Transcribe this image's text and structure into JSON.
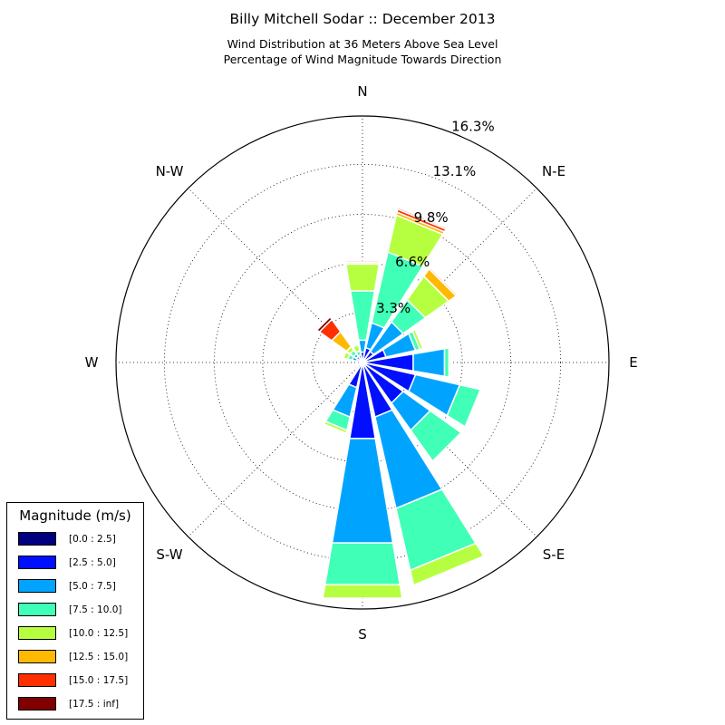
{
  "title": "Billy Mitchell Sodar :: December 2013",
  "subtitle1": "Wind Distribution at 36 Meters Above Sea Level",
  "subtitle2": "Percentage of Wind Magnitude Towards Direction",
  "directions": [
    "N",
    "N-E",
    "E",
    "S-E",
    "S",
    "S-W",
    "W",
    "N-W"
  ],
  "legend": {
    "title": "Magnitude (m/s)",
    "items": [
      {
        "label": "[0.0 : 2.5]",
        "color": "#000080"
      },
      {
        "label": "[2.5 : 5.0]",
        "color": "#0010ff"
      },
      {
        "label": "[5.0 : 7.5]",
        "color": "#00a4ff"
      },
      {
        "label": "[7.5 : 10.0]",
        "color": "#40ffb6"
      },
      {
        "label": "[10.0 : 12.5]",
        "color": "#b6ff40"
      },
      {
        "label": "[12.5 : 15.0]",
        "color": "#ffb900"
      },
      {
        "label": "[15.0 : 17.5]",
        "color": "#ff3000"
      },
      {
        "label": "[17.5 : inf]",
        "color": "#800000"
      }
    ]
  },
  "chart_data": {
    "type": "windrose",
    "title": "Billy Mitchell Sodar :: December 2013",
    "subtitle": [
      "Wind Distribution at 36 Meters Above Sea Level",
      "Percentage of Wind Magnitude Towards Direction"
    ],
    "radial_unit": "percent",
    "radial_ticks": [
      3.3,
      6.6,
      9.8,
      13.1,
      16.3
    ],
    "radial_tick_labels": [
      "3.3%",
      "6.6%",
      "9.8%",
      "13.1%",
      "16.3%"
    ],
    "rmax": 16.3,
    "grid": true,
    "legend_position": "bottom-left",
    "bins": [
      "[0.0 : 2.5]",
      "[2.5 : 5.0]",
      "[5.0 : 7.5]",
      "[7.5 : 10.0]",
      "[10.0 : 12.5]",
      "[12.5 : 15.0]",
      "[15.0 : 17.5]",
      "[17.5 : inf]"
    ],
    "sectors": [
      {
        "direction_deg": 0,
        "values": [
          0.2,
          0.5,
          0.8,
          3.3,
          1.8,
          0.1,
          0.1,
          0.0
        ]
      },
      {
        "direction_deg": 22.5,
        "values": [
          0.2,
          0.8,
          1.7,
          4.8,
          2.5,
          0.2,
          0.2,
          0.1
        ]
      },
      {
        "direction_deg": 45,
        "values": [
          0.2,
          0.7,
          2.4,
          1.8,
          1.9,
          0.6,
          0.1,
          0.0
        ]
      },
      {
        "direction_deg": 67.5,
        "values": [
          0.2,
          1.4,
          2.0,
          0.3,
          0.2,
          0.0,
          0.0,
          0.0
        ]
      },
      {
        "direction_deg": 90,
        "values": [
          0.2,
          3.2,
          2.1,
          0.3,
          0.1,
          0.0,
          0.0,
          0.0
        ]
      },
      {
        "direction_deg": 112.5,
        "values": [
          0.2,
          3.4,
          3.0,
          1.4,
          0.0,
          0.0,
          0.0,
          0.0
        ]
      },
      {
        "direction_deg": 135,
        "values": [
          0.2,
          3.1,
          2.2,
          2.5,
          0.0,
          0.0,
          0.0,
          0.0
        ]
      },
      {
        "direction_deg": 157.5,
        "values": [
          0.2,
          3.5,
          6.2,
          4.2,
          1.0,
          0.0,
          0.0,
          0.0
        ]
      },
      {
        "direction_deg": 180,
        "values": [
          0.2,
          4.9,
          7.0,
          2.8,
          0.9,
          0.0,
          0.0,
          0.0
        ]
      },
      {
        "direction_deg": 202.5,
        "values": [
          0.2,
          1.5,
          2.0,
          0.9,
          0.2,
          0.0,
          0.0,
          0.0
        ]
      },
      {
        "direction_deg": 225,
        "values": [
          0.1,
          0.3,
          0.1,
          0.0,
          0.0,
          0.0,
          0.0,
          0.0
        ]
      },
      {
        "direction_deg": 247.5,
        "values": [
          0.1,
          0.1,
          0.1,
          0.0,
          0.0,
          0.0,
          0.0,
          0.0
        ]
      },
      {
        "direction_deg": 270,
        "values": [
          0.1,
          0.1,
          0.0,
          0.0,
          0.0,
          0.0,
          0.0,
          0.0
        ]
      },
      {
        "direction_deg": 292.5,
        "values": [
          0.1,
          0.3,
          0.3,
          0.3,
          0.3,
          0.0,
          0.0,
          0.0
        ]
      },
      {
        "direction_deg": 315,
        "values": [
          0.2,
          0.3,
          0.2,
          0.3,
          0.3,
          1.2,
          1.0,
          0.2
        ]
      },
      {
        "direction_deg": 337.5,
        "values": [
          0.1,
          0.2,
          0.2,
          0.3,
          0.4,
          0.0,
          0.0,
          0.0
        ]
      }
    ]
  }
}
